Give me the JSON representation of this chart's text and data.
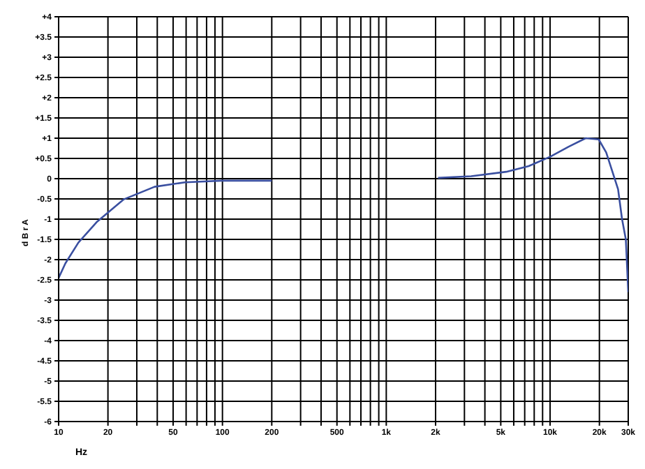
{
  "chart_data": {
    "type": "line",
    "xlabel": "Hz",
    "ylabel": "d B r A",
    "log": "x",
    "grid": true,
    "marker": "none",
    "line_style": "solid",
    "xlim": [
      10,
      30000
    ],
    "ylim": [
      -6,
      4
    ],
    "xticks": [
      10,
      20,
      {
        "value": 30,
        "label": null
      },
      {
        "value": 40,
        "label": null
      },
      50,
      {
        "value": 60,
        "label": null
      },
      {
        "value": 70,
        "label": null
      },
      {
        "value": 80,
        "label": null
      },
      {
        "value": 90,
        "label": null
      },
      100,
      200,
      {
        "value": 300,
        "label": null
      },
      {
        "value": 400,
        "label": null
      },
      500,
      {
        "value": 600,
        "label": null
      },
      {
        "value": 700,
        "label": null
      },
      {
        "value": 800,
        "label": null
      },
      {
        "value": 900,
        "label": null
      },
      {
        "value": 1000,
        "label": "1k"
      },
      {
        "value": 2000,
        "label": "2k"
      },
      {
        "value": 3000,
        "label": null
      },
      {
        "value": 4000,
        "label": null
      },
      {
        "value": 5000,
        "label": "5k"
      },
      {
        "value": 6000,
        "label": null
      },
      {
        "value": 7000,
        "label": null
      },
      {
        "value": 8000,
        "label": null
      },
      {
        "value": 9000,
        "label": null
      },
      {
        "value": 10000,
        "label": "10k"
      },
      {
        "value": 20000,
        "label": "20k"
      },
      {
        "value": 30000,
        "label": "30k"
      }
    ],
    "yticks": [
      {
        "value": 4,
        "label": "+4"
      },
      {
        "value": 3.5,
        "label": "+3.5"
      },
      {
        "value": 3,
        "label": "+3"
      },
      {
        "value": 2.5,
        "label": "+2.5"
      },
      {
        "value": 2,
        "label": "+2"
      },
      {
        "value": 1.5,
        "label": "+1.5"
      },
      {
        "value": 1,
        "label": "+1"
      },
      {
        "value": 0.5,
        "label": "+0.5"
      },
      0,
      -0.5,
      -1,
      -1.5,
      -2,
      -2.5,
      -3,
      -3.5,
      -4,
      -4.5,
      -5,
      -5.5,
      -6
    ],
    "series": [
      {
        "color": "#3a4fa0",
        "x": [
          10,
          11,
          13.2,
          17.2,
          25,
          38.5,
          59,
          98,
          200,
          2000,
          2070,
          3300,
          5400,
          7400,
          10000,
          13000,
          16500,
          19800,
          22000,
          26000,
          27500,
          29000,
          30000
        ],
        "values": [
          -2.45,
          -2.09,
          -1.58,
          -1.06,
          -0.51,
          -0.2,
          -0.09,
          -0.05,
          -0.05,
          null,
          0.02,
          0.06,
          0.17,
          0.31,
          0.54,
          0.79,
          1.0,
          0.97,
          0.65,
          -0.26,
          -1.0,
          -1.5,
          -2.8
        ]
      }
    ]
  }
}
